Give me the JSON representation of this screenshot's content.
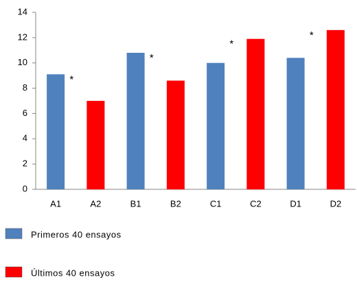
{
  "chart_data": {
    "type": "bar",
    "categories": [
      "A1",
      "A2",
      "B1",
      "B2",
      "C1",
      "C2",
      "D1",
      "D2"
    ],
    "series": [
      {
        "name": "Primeros 40 ensayos",
        "color": "#4f81bd",
        "values": [
          9.1,
          null,
          10.8,
          null,
          10.0,
          null,
          10.4,
          null
        ]
      },
      {
        "name": "Últimos 40 ensayos",
        "color": "#ff0000",
        "values": [
          null,
          7.0,
          null,
          8.6,
          null,
          11.9,
          null,
          12.6
        ]
      }
    ],
    "ylim": [
      0,
      14
    ],
    "yticks": [
      0,
      2,
      4,
      6,
      8,
      10,
      12,
      14
    ],
    "grid": false,
    "legend": "bottom-left",
    "annotations": [
      {
        "text": "*",
        "category": "A2"
      },
      {
        "text": "*",
        "category": "B2"
      },
      {
        "text": "*",
        "category": "C2"
      },
      {
        "text": "*",
        "category": "D2"
      }
    ]
  }
}
